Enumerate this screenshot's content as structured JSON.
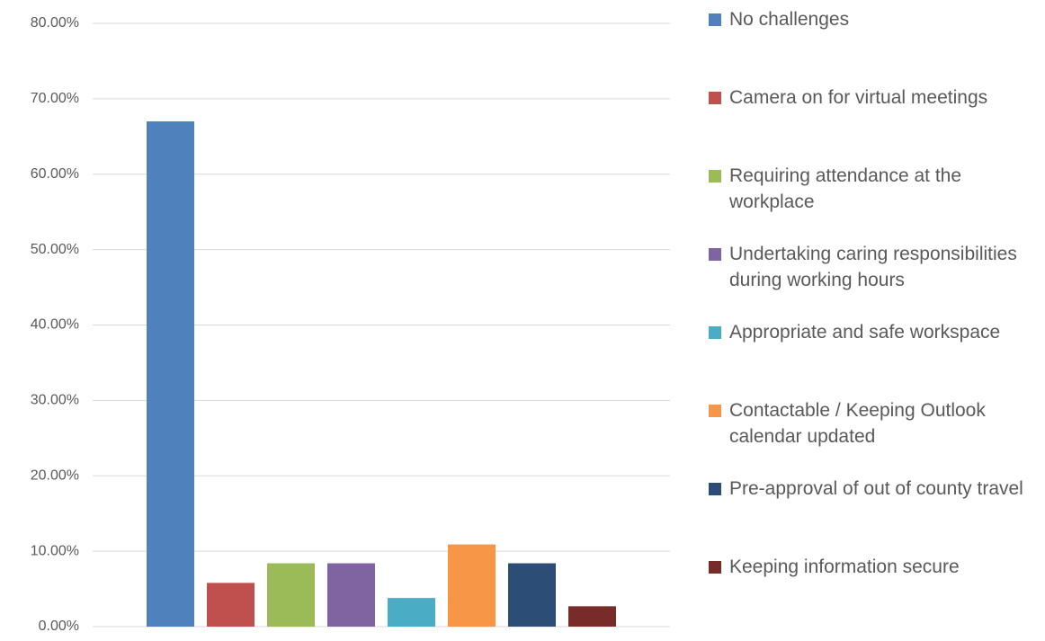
{
  "chart_data": {
    "type": "bar",
    "series": [
      {
        "name": "No challenges",
        "color": "#4f81bd",
        "values": [
          67
        ]
      },
      {
        "name": "Camera on for virtual meetings",
        "color": "#c0504d",
        "values": [
          5.8
        ]
      },
      {
        "name": "Requiring attendance at the workplace",
        "color": "#9bbb59",
        "values": [
          8.4
        ]
      },
      {
        "name": "Undertaking caring responsibilities during working hours",
        "color": "#8064a2",
        "values": [
          8.4
        ]
      },
      {
        "name": "Appropriate and safe workspace",
        "color": "#4bacc6",
        "values": [
          3.8
        ]
      },
      {
        "name": "Contactable / Keeping Outlook calendar updated",
        "color": "#f79646",
        "values": [
          10.9
        ]
      },
      {
        "name": "Pre-approval of out of county travel",
        "color": "#2c4d75",
        "values": [
          8.4
        ]
      },
      {
        "name": "Keeping information secure",
        "color": "#772c2a",
        "values": [
          2.7
        ]
      }
    ],
    "ylim": [
      0,
      80
    ],
    "yticks": [
      {
        "value": 0,
        "label": "0.00%"
      },
      {
        "value": 10,
        "label": "10.00%"
      },
      {
        "value": 20,
        "label": "20.00%"
      },
      {
        "value": 30,
        "label": "30.00%"
      },
      {
        "value": 40,
        "label": "40.00%"
      },
      {
        "value": 50,
        "label": "50.00%"
      },
      {
        "value": 60,
        "label": "60.00%"
      },
      {
        "value": 70,
        "label": "70.00%"
      },
      {
        "value": 80,
        "label": "80.00%"
      }
    ],
    "grid": true,
    "legend": "right"
  }
}
